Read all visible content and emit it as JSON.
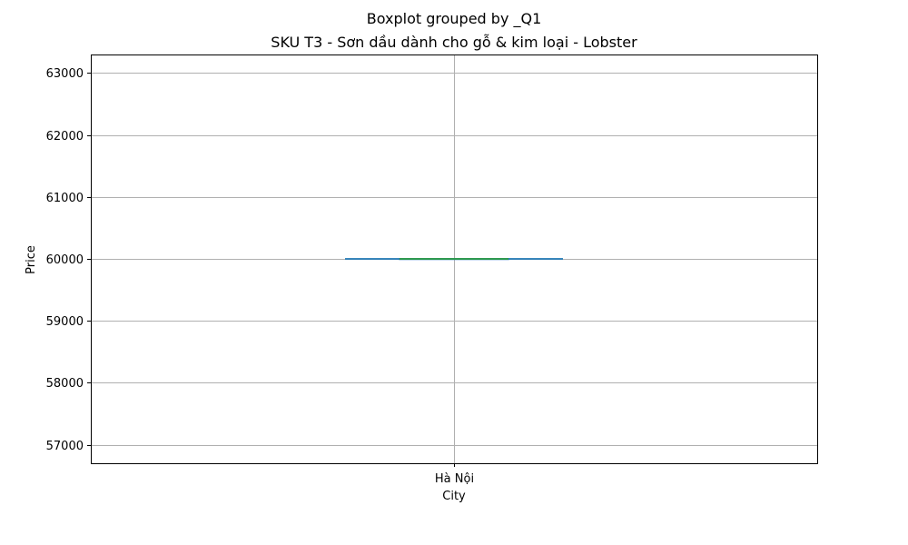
{
  "figure": {
    "suptitle": "Boxplot grouped by _Q1",
    "title": "SKU T3 - Sơn dầu dành cho gỗ & kim loại - Lobster"
  },
  "chart_data": {
    "type": "box",
    "title": "SKU T3 - Sơn dầu dành cho gỗ & kim loại - Lobster",
    "xlabel": "City",
    "ylabel": "Price",
    "categories": [
      "Hà Nội"
    ],
    "boxes": [
      {
        "category": "Hà Nội",
        "whisker_low": 60000,
        "q1": 60000,
        "median": 60000,
        "q3": 60000,
        "whisker_high": 60000
      }
    ],
    "y_ticks": [
      57000,
      58000,
      59000,
      60000,
      61000,
      62000,
      63000
    ],
    "ylim": [
      56700,
      63300
    ],
    "grid": true,
    "colors": {
      "box": "#1f77b4",
      "median": "#2ca02c",
      "whisker": "#1f77b4",
      "grid": "#b0b0b0",
      "axes": "#000000"
    }
  }
}
